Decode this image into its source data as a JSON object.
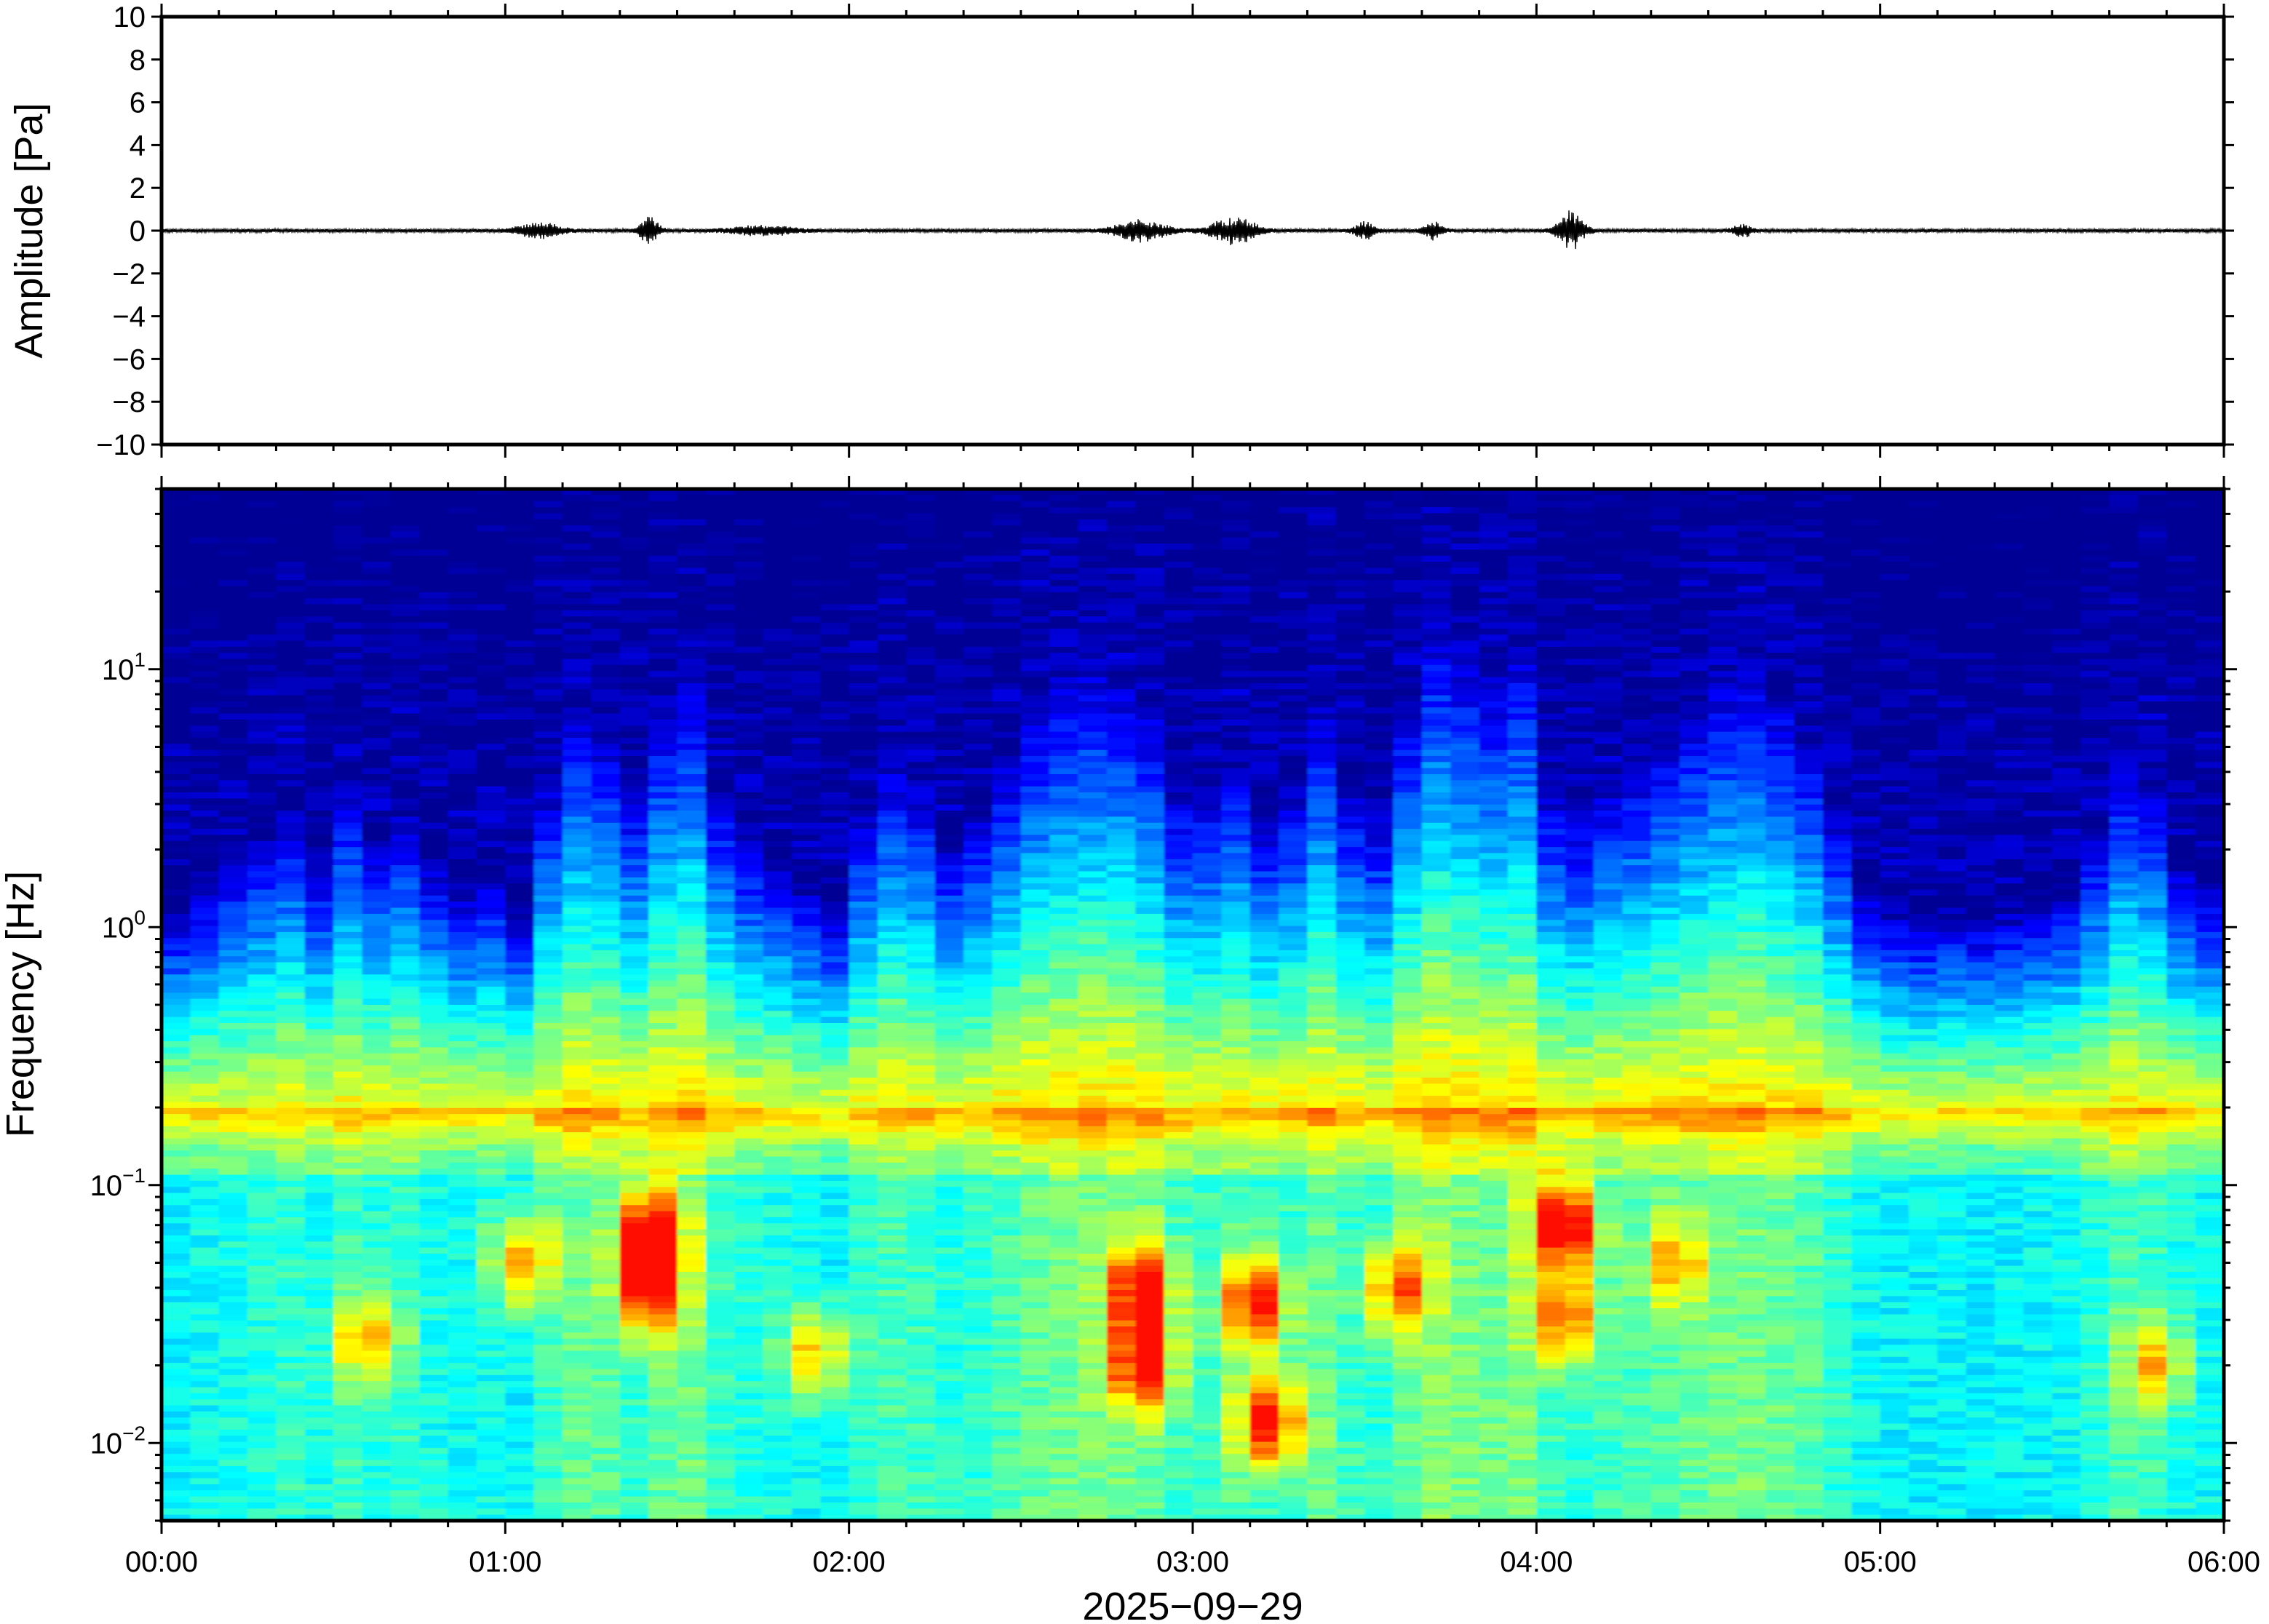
{
  "chart_data": [
    {
      "type": "line",
      "panel": "waveform",
      "ylabel": "Amplitude [Pa]",
      "ylim": [
        -10,
        10
      ],
      "yticks": [
        -10,
        -8,
        -6,
        -4,
        -2,
        0,
        2,
        4,
        6,
        8,
        10
      ],
      "ytick_labels": [
        "−10",
        "−8",
        "−6",
        "−4",
        "−2",
        "0",
        "2",
        "4",
        "6",
        "8",
        "10"
      ],
      "xlim_hours": [
        0,
        6
      ],
      "baseline_noise_amplitude": 0.06,
      "bursts": [
        {
          "t_hours": 1.1,
          "amplitude": 0.25,
          "width_hours": 0.07
        },
        {
          "t_hours": 1.42,
          "amplitude": 0.45,
          "width_hours": 0.03
        },
        {
          "t_hours": 1.75,
          "amplitude": 0.15,
          "width_hours": 0.1
        },
        {
          "t_hours": 2.85,
          "amplitude": 0.35,
          "width_hours": 0.08
        },
        {
          "t_hours": 3.12,
          "amplitude": 0.45,
          "width_hours": 0.07
        },
        {
          "t_hours": 3.5,
          "amplitude": 0.3,
          "width_hours": 0.03
        },
        {
          "t_hours": 3.7,
          "amplitude": 0.28,
          "width_hours": 0.03
        },
        {
          "t_hours": 4.1,
          "amplitude": 0.65,
          "width_hours": 0.04
        },
        {
          "t_hours": 4.6,
          "amplitude": 0.2,
          "width_hours": 0.03
        }
      ]
    },
    {
      "type": "heatmap",
      "panel": "spectrogram",
      "ylabel": "Frequency [Hz]",
      "yscale": "log",
      "ylim": [
        0.005,
        50
      ],
      "yticks": [
        {
          "value": 0.01,
          "base": "10",
          "exp": "−2"
        },
        {
          "value": 0.1,
          "base": "10",
          "exp": "−1"
        },
        {
          "value": 1,
          "base": "10",
          "exp": "0"
        },
        {
          "value": 10,
          "base": "10",
          "exp": "1"
        }
      ],
      "xlabel": "2025−09−29",
      "xlim_hours": [
        0,
        6
      ],
      "xticks": [
        {
          "value": 0,
          "label": "00:00"
        },
        {
          "value": 1,
          "label": "01:00"
        },
        {
          "value": 2,
          "label": "02:00"
        },
        {
          "value": 3,
          "label": "03:00"
        },
        {
          "value": 4,
          "label": "04:00"
        },
        {
          "value": 5,
          "label": "05:00"
        },
        {
          "value": 6,
          "label": "06:00"
        }
      ],
      "colormap": "jet",
      "background_color": "#000a80",
      "microseism_peak_hz": 0.2,
      "segments": 72,
      "noise_level_by_segment": [
        0.3,
        0.35,
        0.4,
        0.45,
        0.5,
        0.4,
        0.55,
        0.45,
        0.5,
        0.4,
        0.35,
        0.38,
        0.3,
        0.55,
        0.7,
        0.65,
        0.55,
        0.7,
        0.75,
        0.55,
        0.45,
        0.4,
        0.35,
        0.3,
        0.5,
        0.6,
        0.55,
        0.45,
        0.5,
        0.6,
        0.7,
        0.75,
        0.78,
        0.75,
        0.7,
        0.55,
        0.55,
        0.6,
        0.5,
        0.55,
        0.7,
        0.55,
        0.5,
        0.7,
        0.85,
        0.8,
        0.75,
        0.8,
        0.55,
        0.5,
        0.55,
        0.6,
        0.65,
        0.7,
        0.75,
        0.78,
        0.72,
        0.65,
        0.5,
        0.35,
        0.3,
        0.28,
        0.3,
        0.28,
        0.3,
        0.32,
        0.35,
        0.45,
        0.6,
        0.55,
        0.4,
        0.35
      ],
      "hotspots": [
        {
          "t_hours": 1.05,
          "freq_hz": 0.05,
          "intensity": 0.8
        },
        {
          "t_hours": 1.42,
          "freq_hz": 0.065,
          "intensity": 0.95
        },
        {
          "t_hours": 1.42,
          "freq_hz": 0.04,
          "intensity": 0.9
        },
        {
          "t_hours": 0.6,
          "freq_hz": 0.025,
          "intensity": 0.75
        },
        {
          "t_hours": 1.9,
          "freq_hz": 0.022,
          "intensity": 0.75
        },
        {
          "t_hours": 2.85,
          "freq_hz": 0.04,
          "intensity": 0.92
        },
        {
          "t_hours": 2.85,
          "freq_hz": 0.02,
          "intensity": 0.9
        },
        {
          "t_hours": 3.18,
          "freq_hz": 0.035,
          "intensity": 0.92
        },
        {
          "t_hours": 3.22,
          "freq_hz": 0.012,
          "intensity": 0.92
        },
        {
          "t_hours": 3.6,
          "freq_hz": 0.04,
          "intensity": 0.8
        },
        {
          "t_hours": 4.08,
          "freq_hz": 0.07,
          "intensity": 1.0
        },
        {
          "t_hours": 4.08,
          "freq_hz": 0.03,
          "intensity": 0.82
        },
        {
          "t_hours": 4.4,
          "freq_hz": 0.05,
          "intensity": 0.72
        },
        {
          "t_hours": 5.8,
          "freq_hz": 0.02,
          "intensity": 0.72
        }
      ]
    }
  ]
}
